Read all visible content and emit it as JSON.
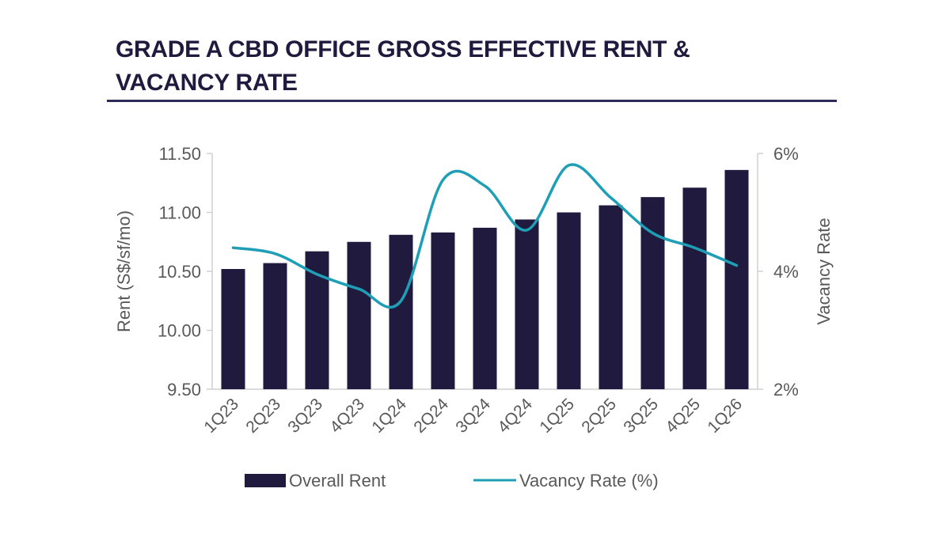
{
  "header": {
    "title_line1": "GRADE A CBD OFFICE GROSS EFFECTIVE RENT &",
    "title_line2": "VACANCY RATE"
  },
  "colors": {
    "title": "#1f1a3e",
    "rule": "#2d2a57",
    "bar": "#1f1a3e",
    "line": "#1e9fb5",
    "axis": "#d0d0d0",
    "text": "#595959"
  },
  "chart_data": {
    "type": "bar",
    "title": "GRADE A CBD OFFICE GROSS EFFECTIVE RENT & VACANCY RATE",
    "categories": [
      "1Q23",
      "2Q23",
      "3Q23",
      "4Q23",
      "1Q24",
      "2Q24",
      "3Q24",
      "4Q24",
      "1Q25",
      "2Q25",
      "3Q25",
      "4Q25",
      "1Q26"
    ],
    "series": [
      {
        "name": "Overall Rent",
        "type": "bar",
        "axis": "left",
        "values": [
          10.52,
          10.57,
          10.67,
          10.75,
          10.81,
          10.83,
          10.87,
          10.94,
          11.0,
          11.06,
          11.13,
          11.21,
          11.36
        ]
      },
      {
        "name": "Vacancy Rate (%)",
        "type": "line",
        "smooth": true,
        "axis": "right",
        "values": [
          4.4,
          4.3,
          3.95,
          3.7,
          3.5,
          5.55,
          5.45,
          4.7,
          5.8,
          5.25,
          4.65,
          4.4,
          4.1
        ]
      }
    ],
    "ylabel": "Rent (S$/sf/mo)",
    "ylim": [
      9.5,
      11.5
    ],
    "yticks": [
      "9.50",
      "10.00",
      "10.50",
      "11.00",
      "11.50"
    ],
    "ytick_values": [
      9.5,
      10.0,
      10.5,
      11.0,
      11.5
    ],
    "y2label": "Vacancy Rate",
    "y2lim": [
      2,
      6
    ],
    "y2ticks": [
      "2%",
      "4%",
      "6%"
    ],
    "y2tick_values": [
      2,
      4,
      6
    ],
    "xlabel": "",
    "grid": false,
    "legend": "bottom-center",
    "legend_entries": [
      "Overall Rent",
      "Vacancy Rate (%)"
    ]
  }
}
